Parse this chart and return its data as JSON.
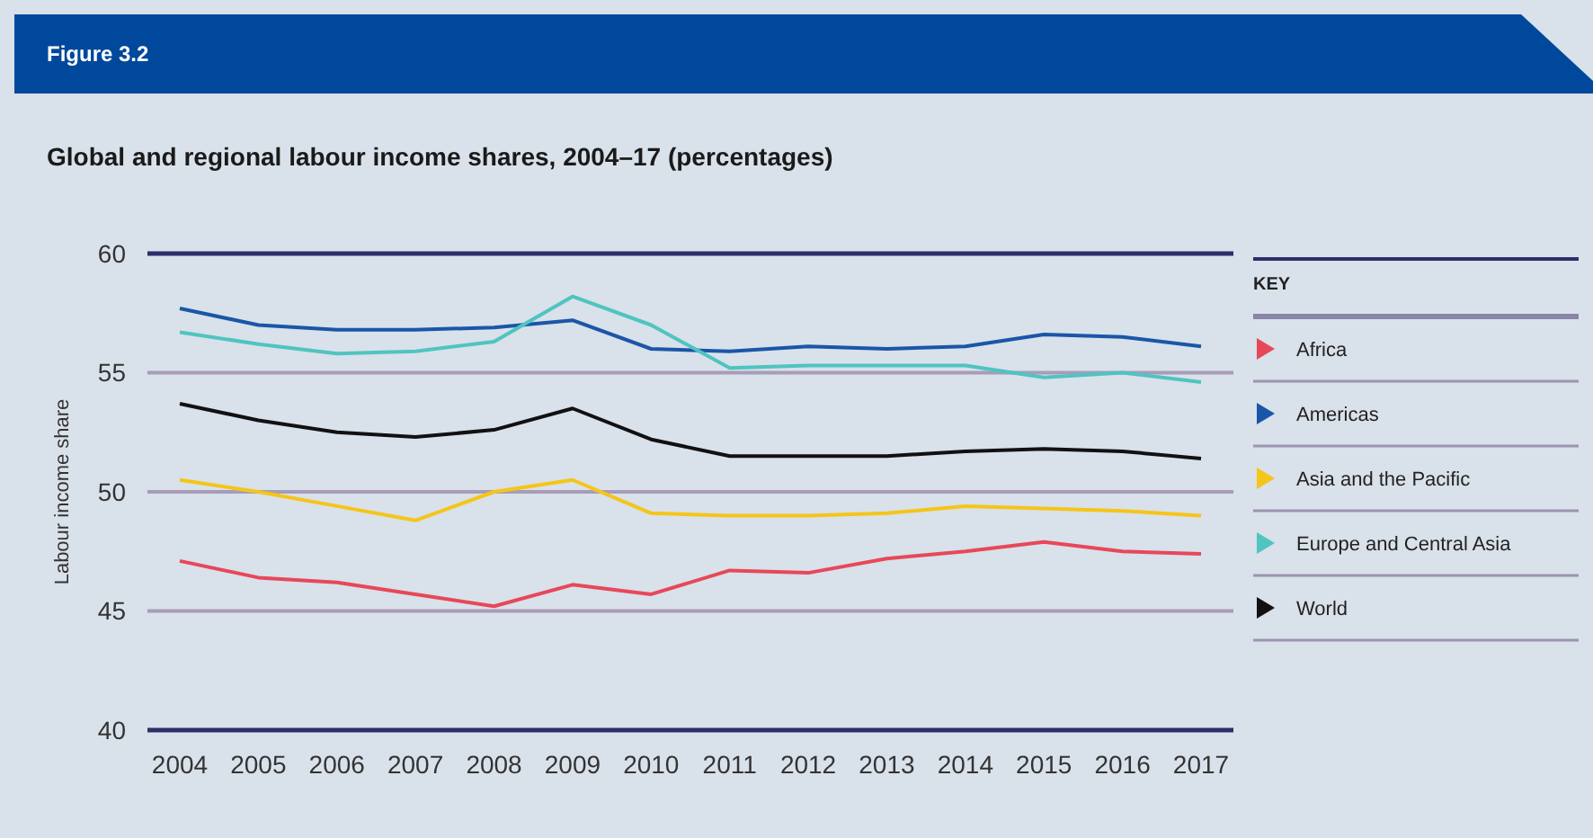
{
  "chart_data": {
    "type": "line",
    "title": "Global and regional labour income shares, 2004–17 (percentages)",
    "ylabel": "Labour income share",
    "legend_title": "KEY",
    "annotations": [
      "Figure 3.2"
    ],
    "categories": [
      "2004",
      "2005",
      "2006",
      "2007",
      "2008",
      "2009",
      "2010",
      "2011",
      "2012",
      "2013",
      "2014",
      "2015",
      "2016",
      "2017"
    ],
    "series": [
      {
        "name": "Africa",
        "color": "#e8475a",
        "values": [
          47.1,
          46.4,
          46.2,
          45.7,
          45.2,
          46.1,
          45.7,
          46.7,
          46.6,
          47.2,
          47.5,
          47.9,
          47.5,
          47.4
        ]
      },
      {
        "name": "Americas",
        "color": "#1a56a8",
        "values": [
          57.7,
          57.0,
          56.8,
          56.8,
          56.9,
          57.2,
          56.0,
          55.9,
          56.1,
          56.0,
          56.1,
          56.6,
          56.5,
          56.1
        ]
      },
      {
        "name": "Asia and the Pacific",
        "color": "#f5c518",
        "values": [
          50.5,
          50.0,
          49.4,
          48.8,
          50.0,
          50.5,
          49.1,
          49.0,
          49.0,
          49.1,
          49.4,
          49.3,
          49.2,
          49.0
        ]
      },
      {
        "name": "Europe and Central Asia",
        "color": "#4fc4c0",
        "values": [
          56.7,
          56.2,
          55.8,
          55.9,
          56.3,
          58.2,
          57.0,
          55.2,
          55.3,
          55.3,
          55.3,
          54.8,
          55.0,
          54.6
        ]
      },
      {
        "name": "World",
        "color": "#111111",
        "values": [
          53.7,
          53.0,
          52.5,
          52.3,
          52.6,
          53.5,
          52.2,
          51.5,
          51.5,
          51.5,
          51.7,
          51.8,
          51.7,
          51.4
        ]
      }
    ],
    "ylim": [
      40,
      60
    ],
    "yticks": [
      40,
      45,
      50,
      55,
      60
    ],
    "grid": "y",
    "legend": "right"
  }
}
